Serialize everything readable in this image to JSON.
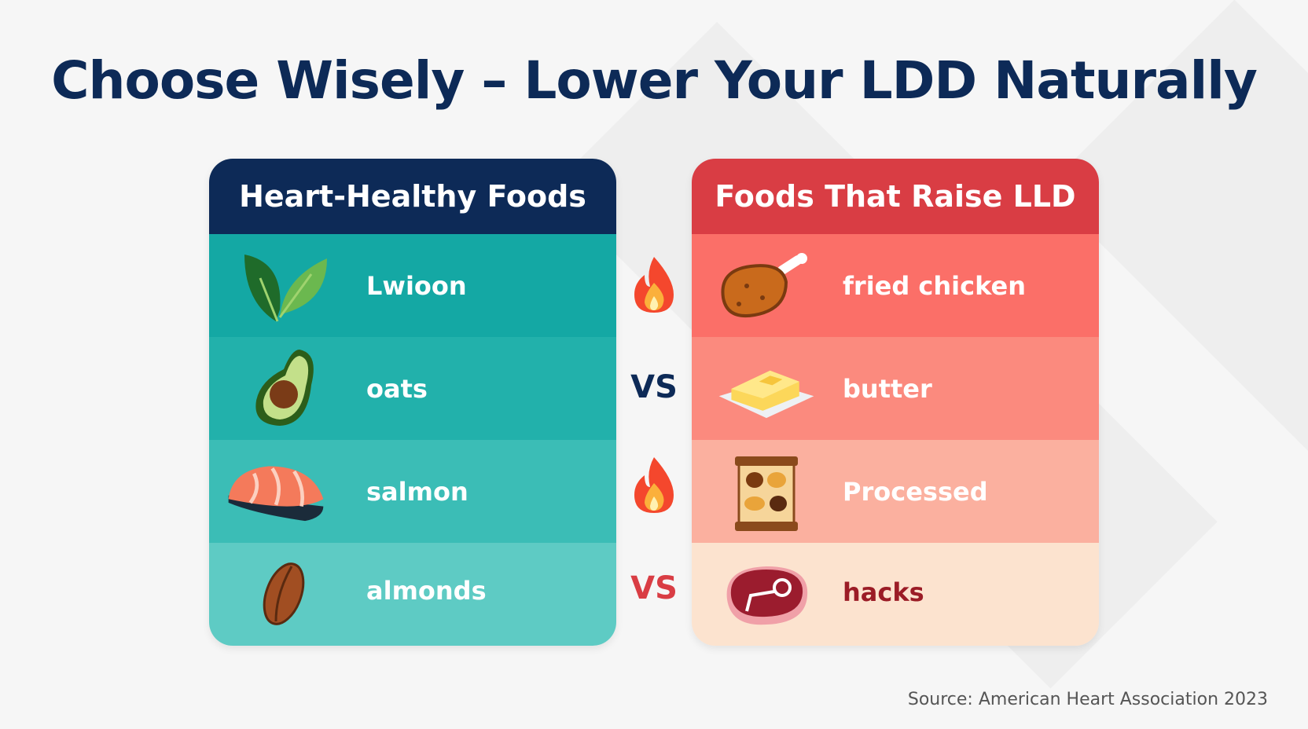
{
  "title": "Choose Wisely – Lower Your LDD Naturally",
  "left_card": {
    "header": "Heart-Healthy Foods",
    "header_color": "#0d2a57",
    "items": [
      {
        "label": "Lwioon",
        "icon": "leaves-icon",
        "color": "#14a8a4"
      },
      {
        "label": "oats",
        "icon": "avocado-icon",
        "color": "#22b1ab"
      },
      {
        "label": "salmon",
        "icon": "salmon-icon",
        "color": "#3bbdb6"
      },
      {
        "label": "almonds",
        "icon": "almond-icon",
        "color": "#5ecbc4"
      }
    ]
  },
  "right_card": {
    "header": "Foods That Raise LLD",
    "header_color": "#d93d44",
    "items": [
      {
        "label": "fried chicken",
        "icon": "fried-chicken-icon",
        "color": "#fb6f68",
        "text_color": "#ffffff"
      },
      {
        "label": "butter",
        "icon": "butter-icon",
        "color": "#fb8a7e",
        "text_color": "#ffffff"
      },
      {
        "label": "Processed",
        "icon": "snack-pack-icon",
        "color": "#fbb09f",
        "text_color": "#ffffff"
      },
      {
        "label": "hacks",
        "icon": "steak-icon",
        "color": "#fce3cf",
        "text_color": "#9b1c26"
      }
    ]
  },
  "separators": [
    {
      "type": "fire-icon"
    },
    {
      "type": "text",
      "label": "VS",
      "color": "#0d2a57"
    },
    {
      "type": "fire-icon"
    },
    {
      "type": "text",
      "label": "VS",
      "color": "#d93d44"
    }
  ],
  "source": "Source: American Heart Association 2023"
}
